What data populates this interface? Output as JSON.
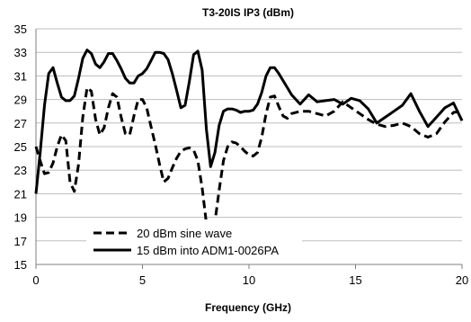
{
  "chart_data": {
    "type": "line",
    "title": "T3-20IS IP3 (dBm)",
    "xlabel": "Frequency (GHz)",
    "ylabel": "",
    "xlim": [
      0,
      20
    ],
    "ylim": [
      15,
      35
    ],
    "xticks": [
      0,
      5,
      10,
      15,
      20
    ],
    "yticks": [
      15,
      17,
      19,
      21,
      23,
      25,
      27,
      29,
      31,
      33,
      35
    ],
    "grid": "horizontal",
    "legend_position": "bottom-left",
    "series": [
      {
        "name": "20 dBm sine wave",
        "style": "dashed",
        "color": "#000000",
        "x": [
          0,
          0.2,
          0.4,
          0.6,
          0.8,
          1.0,
          1.2,
          1.4,
          1.6,
          1.8,
          2.0,
          2.2,
          2.4,
          2.6,
          2.8,
          3.0,
          3.2,
          3.4,
          3.6,
          3.8,
          4.0,
          4.2,
          4.4,
          4.6,
          4.8,
          5.0,
          5.2,
          5.4,
          5.6,
          5.8,
          6.0,
          6.2,
          6.4,
          6.6,
          6.8,
          7.0,
          7.2,
          7.4,
          7.6,
          7.8,
          8.0,
          8.2,
          8.4,
          8.6,
          8.8,
          9.0,
          9.2,
          9.4,
          9.6,
          9.8,
          10.0,
          10.2,
          10.4,
          10.6,
          10.8,
          11.0,
          11.2,
          11.4,
          11.6,
          11.8,
          12.0,
          12.4,
          12.8,
          13.2,
          13.6,
          14.0,
          14.4,
          14.8,
          15.2,
          15.6,
          16.0,
          16.4,
          16.8,
          17.2,
          17.6,
          18.0,
          18.4,
          18.8,
          19.2,
          19.6,
          20.0
        ],
        "y": [
          25.0,
          23.8,
          22.7,
          22.8,
          23.6,
          25.0,
          26.0,
          25.5,
          22.0,
          21.2,
          23.5,
          27.5,
          30.0,
          29.7,
          27.3,
          26.0,
          26.6,
          28.3,
          29.5,
          29.2,
          27.5,
          26.1,
          26.0,
          27.6,
          29.0,
          29.0,
          28.3,
          26.7,
          25.2,
          23.5,
          22.0,
          22.3,
          23.2,
          24.0,
          24.6,
          24.8,
          24.9,
          24.7,
          23.8,
          21.5,
          18.5,
          17.2,
          18.6,
          21.3,
          23.8,
          25.0,
          25.4,
          25.3,
          25.0,
          24.6,
          24.3,
          24.2,
          24.5,
          25.8,
          27.8,
          29.2,
          29.3,
          28.4,
          27.6,
          27.4,
          27.8,
          28.0,
          28.0,
          27.8,
          27.6,
          28.0,
          28.8,
          28.3,
          27.8,
          27.3,
          26.9,
          26.7,
          26.8,
          27.0,
          26.7,
          26.1,
          25.8,
          26.1,
          27.1,
          27.9,
          28.0
        ]
      },
      {
        "name": "15 dBm into ADM1-0026PA",
        "style": "solid",
        "color": "#000000",
        "x": [
          0,
          0.2,
          0.4,
          0.6,
          0.8,
          1.0,
          1.2,
          1.4,
          1.6,
          1.8,
          2.0,
          2.2,
          2.4,
          2.6,
          2.8,
          3.0,
          3.2,
          3.4,
          3.6,
          3.8,
          4.0,
          4.2,
          4.4,
          4.6,
          4.8,
          5.0,
          5.2,
          5.4,
          5.6,
          5.8,
          6.0,
          6.2,
          6.4,
          6.6,
          6.8,
          7.0,
          7.2,
          7.4,
          7.6,
          7.8,
          8.0,
          8.2,
          8.4,
          8.6,
          8.8,
          9.0,
          9.2,
          9.4,
          9.6,
          9.8,
          10.0,
          10.2,
          10.4,
          10.6,
          10.8,
          11.0,
          11.2,
          11.4,
          11.6,
          11.8,
          12.0,
          12.4,
          12.8,
          13.2,
          13.6,
          14.0,
          14.4,
          14.8,
          15.2,
          15.6,
          16.0,
          16.4,
          16.8,
          17.2,
          17.6,
          18.0,
          18.4,
          18.8,
          19.2,
          19.6,
          20.0
        ],
        "y": [
          21.0,
          24.5,
          28.5,
          31.2,
          31.7,
          30.4,
          29.2,
          28.9,
          28.9,
          29.3,
          30.8,
          32.5,
          33.2,
          32.9,
          32.0,
          31.7,
          32.2,
          32.9,
          32.9,
          32.3,
          31.6,
          30.8,
          30.4,
          30.4,
          31.0,
          31.2,
          31.6,
          32.3,
          33.0,
          33.0,
          32.9,
          32.4,
          31.2,
          29.8,
          28.3,
          28.5,
          30.5,
          32.8,
          33.1,
          31.5,
          26.5,
          23.3,
          24.5,
          26.8,
          28.0,
          28.2,
          28.2,
          28.1,
          27.9,
          28.0,
          28.0,
          28.1,
          28.6,
          29.6,
          31.0,
          31.7,
          31.7,
          31.2,
          30.6,
          30.0,
          29.4,
          28.6,
          29.4,
          28.8,
          28.9,
          29.0,
          28.6,
          29.1,
          28.9,
          28.2,
          27.0,
          27.5,
          28.0,
          28.5,
          29.5,
          28.0,
          26.7,
          27.5,
          28.3,
          28.7,
          27.2
        ]
      }
    ]
  }
}
